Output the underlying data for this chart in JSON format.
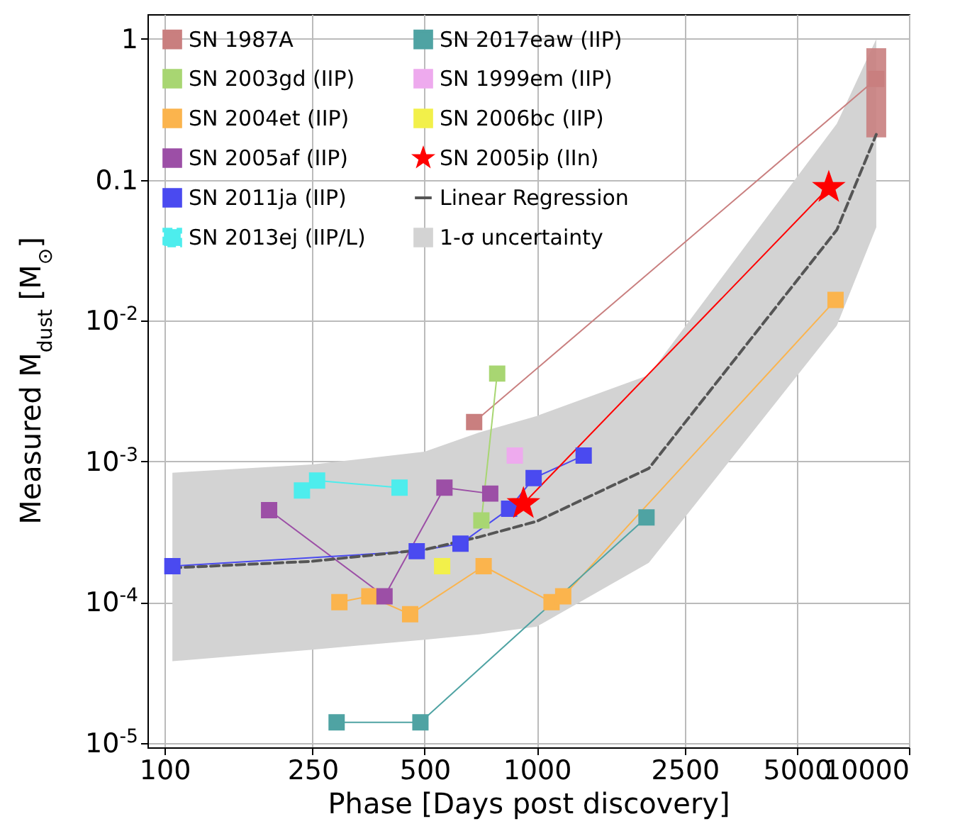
{
  "chart_data": {
    "type": "line",
    "xlabel": "Phase [Days post discovery]",
    "ylabel": "Measured M$_{dust}$ [M$_{⊙}$]",
    "log": "xy",
    "grid": true,
    "legend": "top left",
    "marker": "square",
    "xlim": [
      90,
      10000
    ],
    "xticks": [
      100,
      250,
      500,
      1000,
      2500,
      5000,
      10000
    ],
    "ylim": [
      9.3e-06,
      1.5
    ],
    "yticks": [
      {
        "value": 1e-05,
        "label": "10$^{-5}$"
      },
      {
        "value": 0.0001,
        "label": "10$^{-4}$"
      },
      {
        "value": 0.001,
        "label": "10$^{-3}$"
      },
      {
        "value": 0.01,
        "label": "10$^{-2}$"
      },
      0.1,
      1
    ],
    "series": [
      {
        "name": "SN 1987A",
        "color": "#c97f7f",
        "x": [
          679,
          8170
        ],
        "values": [
          0.0019,
          0.52
        ],
        "errors": [
          null,
          [
            0.2,
            0.86
          ]
        ]
      },
      {
        "name": "SN 2003gd (IIP)",
        "color": "#a8d672",
        "x": [
          783,
          710
        ],
        "values": [
          0.0042,
          0.00038
        ]
      },
      {
        "name": "SN 2004et (IIP)",
        "color": "#fbb44d",
        "x": [
          295,
          355,
          457,
          720,
          1096,
          1178,
          6350
        ],
        "values": [
          0.0001,
          0.00011,
          8.2e-05,
          0.00018,
          0.0001,
          0.00011,
          0.014
        ]
      },
      {
        "name": "SN 2005af (IIP)",
        "color": "#9c4fa6",
        "x": [
          191,
          390,
          565,
          750
        ],
        "values": [
          0.00045,
          0.00011,
          0.00065,
          0.00059
        ]
      },
      {
        "name": "SN 2011ja (IIP)",
        "color": "#4a4af0",
        "x": [
          105,
          476,
          624,
          843,
          981,
          1337
        ],
        "values": [
          0.00018,
          0.00023,
          0.00026,
          0.00046,
          0.00076,
          0.0011
        ]
      },
      {
        "name": "SN 2013ej (IIP/L)",
        "color": "#4deded",
        "x": [
          234,
          257,
          428
        ],
        "values": [
          0.00062,
          0.00073,
          0.00065
        ]
      },
      {
        "name": "SN 2017eaw (IIP)",
        "color": "#4fa3a3",
        "x": [
          290,
          487,
          1972
        ],
        "values": [
          1.4e-05,
          1.4e-05,
          0.0004
        ]
      },
      {
        "name": "SN 1999em (IIP)",
        "type": "scatter",
        "color": "#eeaaee",
        "x": [
          873
        ],
        "values": [
          0.0011
        ]
      },
      {
        "name": "SN 2006bc (IIP)",
        "type": "scatter",
        "color": "#f2f04a",
        "x": [
          557
        ],
        "values": [
          0.00018
        ]
      },
      {
        "name": "SN 2005ip (IIn)",
        "color": "#ff0000",
        "marker": "star",
        "x": [
          921,
          6090
        ],
        "values": [
          0.0005,
          0.088
        ]
      },
      {
        "name": "Linear Regression",
        "color": "#555555",
        "marker": "none",
        "line_style": "dashed",
        "x": [
          105,
          250,
          500,
          700,
          1000,
          2000,
          6400,
          8170
        ],
        "values": [
          0.000175,
          0.000195,
          0.000236,
          0.00029,
          0.000375,
          0.00089,
          0.044,
          0.21
        ],
        "lower": [
          3.8e-05,
          4.6e-05,
          5.4e-05,
          5.9e-05,
          6.7e-05,
          0.00019,
          0.0092,
          0.046
        ],
        "upper": [
          0.00083,
          0.00095,
          0.00117,
          0.0016,
          0.0021,
          0.0041,
          0.25,
          1.0
        ]
      }
    ],
    "annotations": [
      "1-σ uncertainty"
    ]
  }
}
